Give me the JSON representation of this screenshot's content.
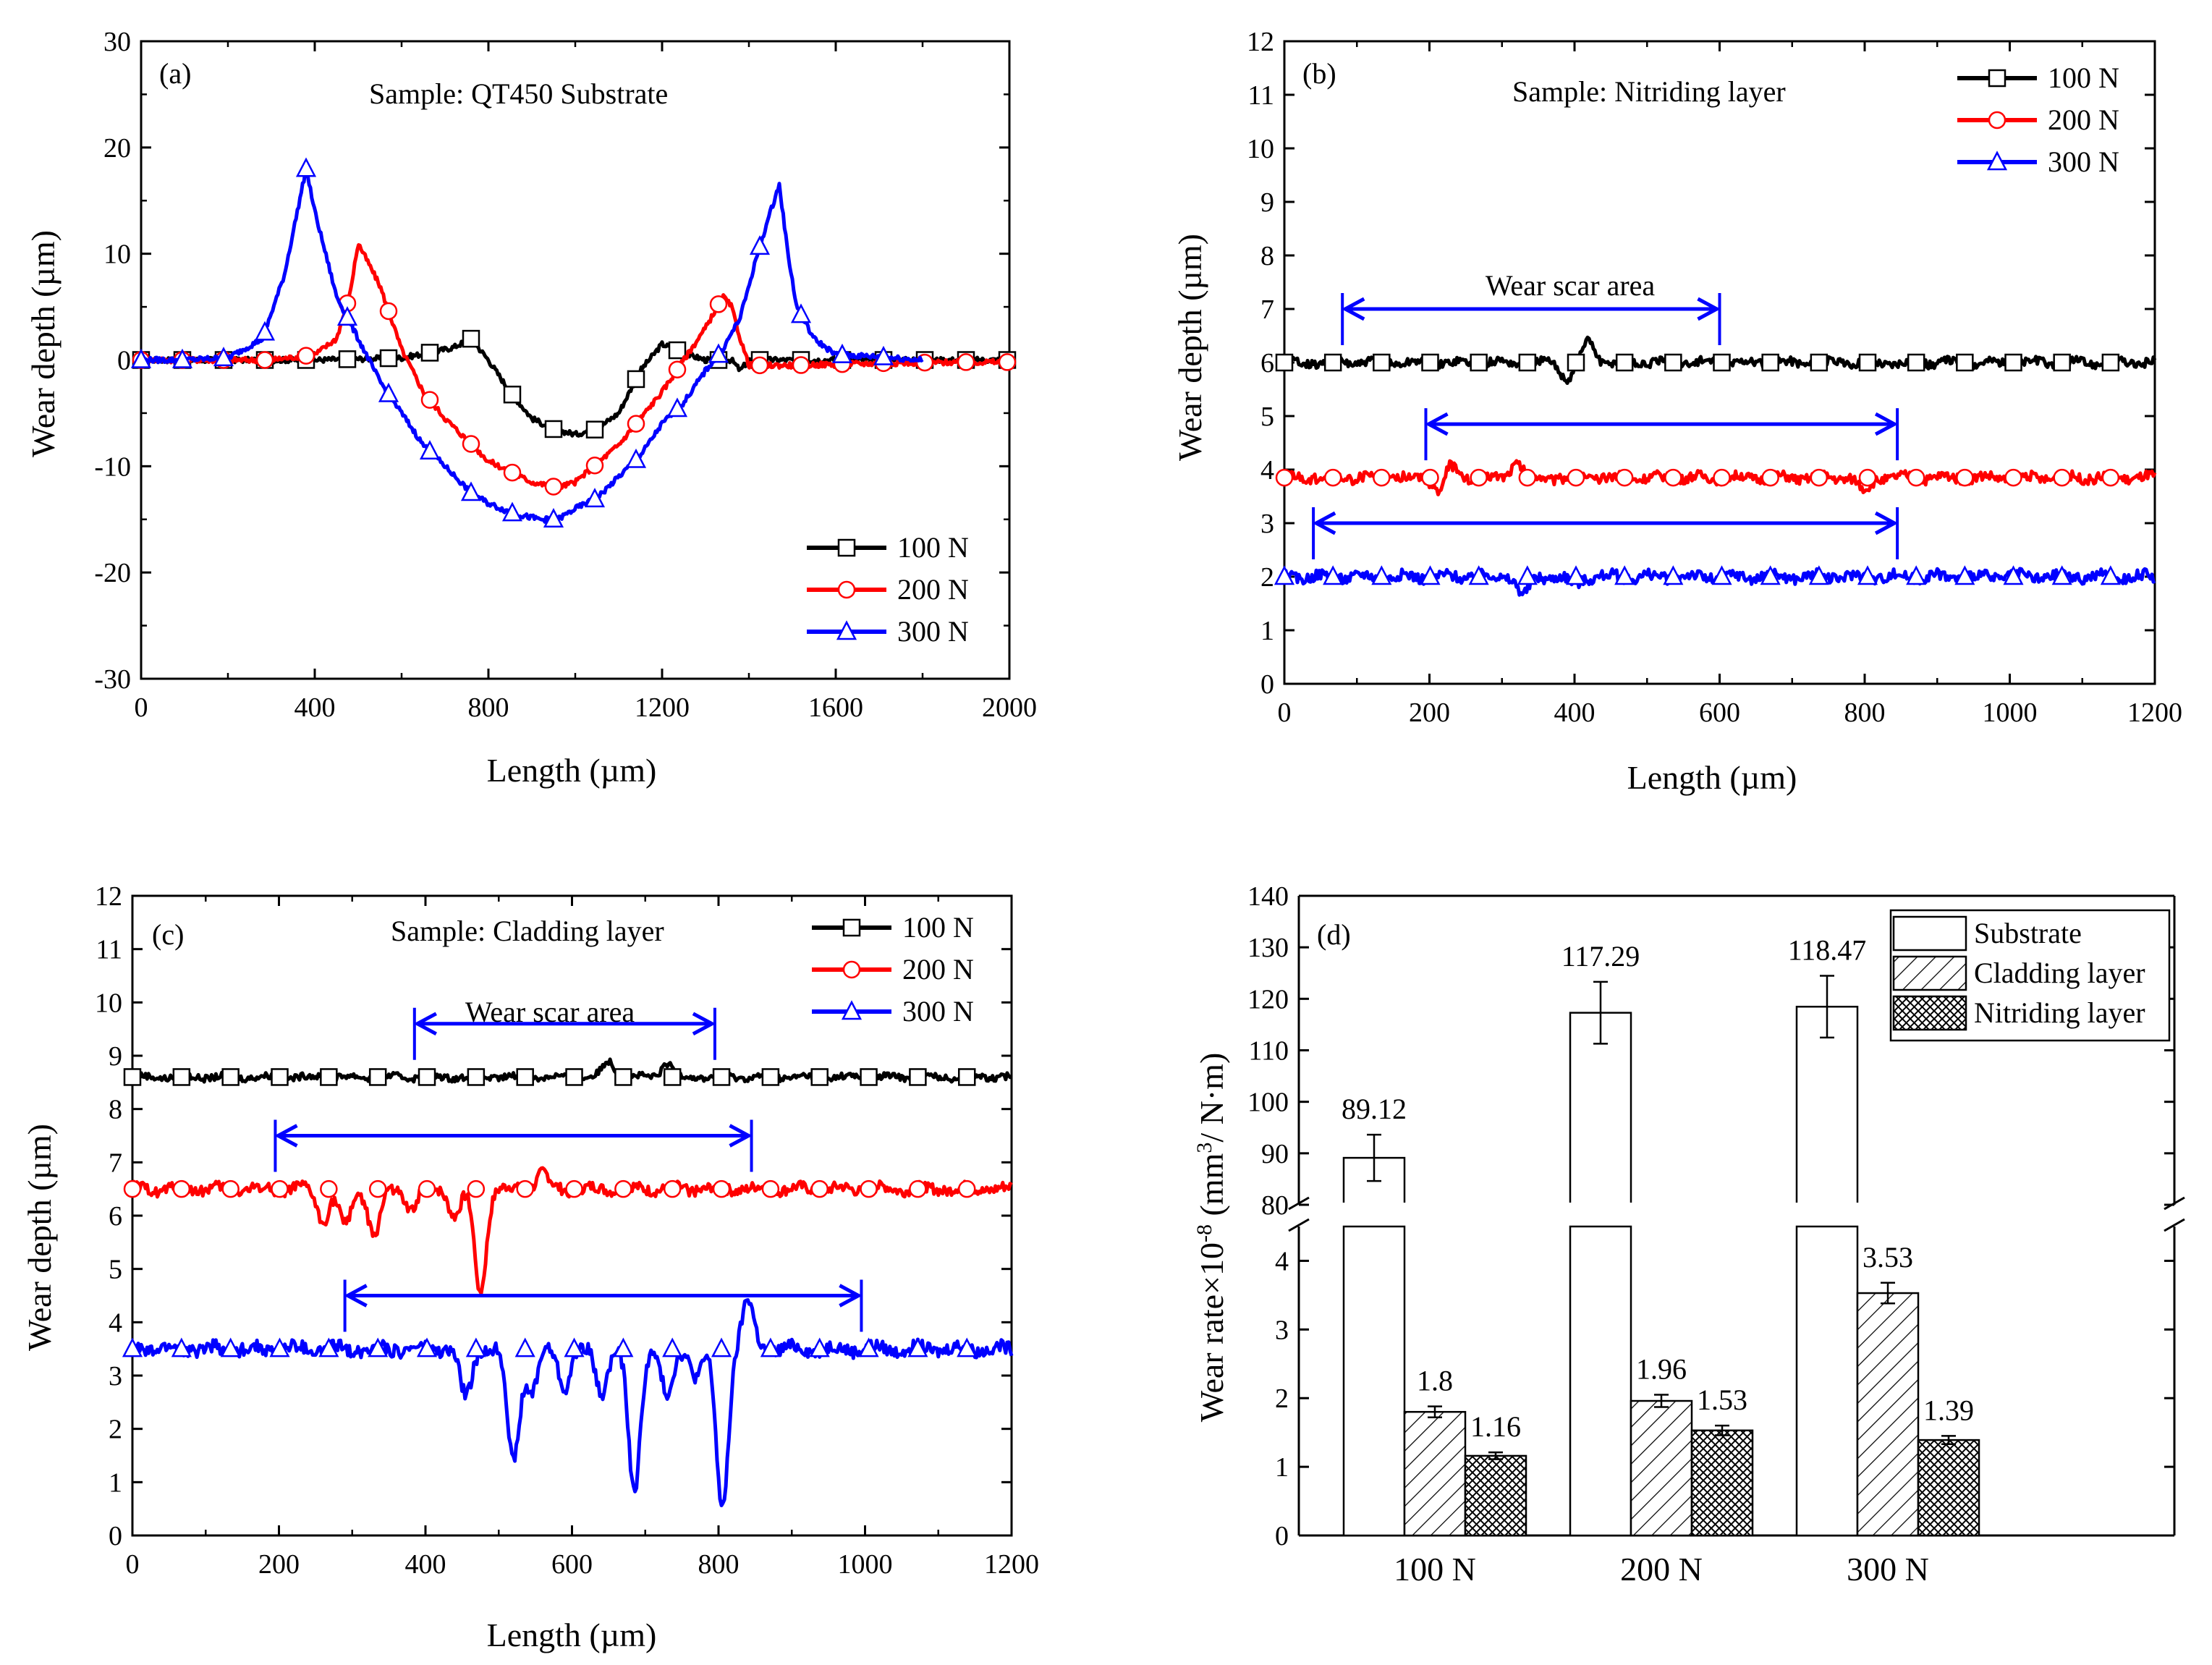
{
  "chart_data": [
    {
      "panel": "(a)",
      "type": "line",
      "title": "Sample: QT450  Substrate",
      "xlabel": "Length (µm)",
      "ylabel": "Wear depth (µm)",
      "xlim": [
        0,
        2000
      ],
      "ylim": [
        -30,
        30
      ],
      "xticks": [
        0,
        400,
        800,
        1200,
        1600,
        2000
      ],
      "yticks": [
        -30,
        -20,
        -10,
        0,
        10,
        20,
        30
      ],
      "series": [
        {
          "name": "100 N",
          "color": "#000000",
          "marker": "square",
          "x": [
            0,
            200,
            400,
            600,
            680,
            720,
            760,
            800,
            850,
            900,
            950,
            1000,
            1050,
            1100,
            1150,
            1200,
            1260,
            1300,
            1360,
            1380,
            1400,
            1600,
            1800,
            2000
          ],
          "y": [
            0,
            0,
            0,
            0.2,
            0.8,
            1.2,
            2,
            0,
            -3,
            -5.5,
            -6.5,
            -7,
            -6.5,
            -5,
            -1,
            1.5,
            0.5,
            0,
            0,
            -1,
            0,
            0,
            0,
            0
          ]
        },
        {
          "name": "200 N",
          "color": "#ff0000",
          "marker": "circle",
          "x": [
            0,
            100,
            200,
            300,
            400,
            450,
            480,
            500,
            550,
            600,
            650,
            700,
            800,
            900,
            960,
            1000,
            1100,
            1200,
            1250,
            1300,
            1340,
            1360,
            1380,
            1400,
            1500,
            1700,
            1900,
            2000
          ],
          "y": [
            0,
            0,
            0,
            0,
            0.5,
            2,
            6,
            11,
            7,
            1,
            -3,
            -5.5,
            -9.5,
            -11.5,
            -12,
            -11.5,
            -8,
            -3,
            0,
            3,
            6,
            5,
            2,
            -0.5,
            -0.5,
            -0.3,
            -0.2,
            -0.2
          ]
        },
        {
          "name": "300 N",
          "color": "#0000ff",
          "marker": "triangle",
          "x": [
            0,
            100,
            200,
            280,
            330,
            360,
            380,
            400,
            450,
            500,
            550,
            600,
            650,
            700,
            760,
            800,
            860,
            920,
            960,
            1000,
            1050,
            1100,
            1150,
            1200,
            1250,
            1300,
            1340,
            1380,
            1420,
            1450,
            1470,
            1490,
            1510,
            1550,
            1600,
            1700,
            1800
          ],
          "y": [
            0,
            0,
            0.2,
            2,
            8,
            14,
            18,
            14,
            6,
            2,
            -2,
            -5,
            -8,
            -10,
            -12.5,
            -13.5,
            -14.5,
            -15,
            -15,
            -14,
            -13,
            -11,
            -9,
            -6,
            -4,
            -1,
            1,
            4,
            10,
            14,
            16.5,
            10,
            5,
            2,
            0.5,
            0.3,
            0
          ]
        }
      ]
    },
    {
      "panel": "(b)",
      "type": "line",
      "title": "Sample: Nitriding layer",
      "annotation": "Wear scar area",
      "xlabel": "Length (µm)",
      "ylabel": "Wear depth (µm)",
      "xlim": [
        0,
        1200
      ],
      "ylim": [
        0,
        12
      ],
      "xticks": [
        0,
        200,
        400,
        600,
        800,
        1000,
        1200
      ],
      "yticks": [
        0,
        1,
        2,
        3,
        4,
        5,
        6,
        7,
        8,
        9,
        10,
        11,
        12
      ],
      "scar_ranges": [
        [
          80,
          600
        ],
        [
          195,
          845
        ],
        [
          40,
          845
        ]
      ],
      "series": [
        {
          "name": "100 N",
          "color": "#000000",
          "marker": "square",
          "baseline": 6.0,
          "noise": 0.08,
          "features": [
            [
              390,
              -0.3
            ],
            [
              420,
              0.4
            ]
          ]
        },
        {
          "name": "200 N",
          "color": "#ff0000",
          "marker": "circle",
          "baseline": 3.85,
          "noise": 0.09,
          "features": [
            [
              215,
              -0.35
            ],
            [
              225,
              0.3
            ],
            [
              320,
              0.3
            ],
            [
              800,
              -0.25
            ]
          ]
        },
        {
          "name": "300 N",
          "color": "#0000ff",
          "marker": "triangle",
          "baseline": 2.0,
          "noise": 0.1,
          "features": [
            [
              330,
              -0.35
            ],
            [
              400,
              -0.15
            ]
          ]
        }
      ]
    },
    {
      "panel": "(c)",
      "type": "line",
      "title": "Sample: Cladding layer",
      "annotation": "Wear scar area",
      "xlabel": "Length (µm)",
      "ylabel": "Wear depth (µm)",
      "xlim": [
        0,
        1200
      ],
      "ylim": [
        0,
        12
      ],
      "xticks": [
        0,
        200,
        400,
        600,
        800,
        1000,
        1200
      ],
      "yticks": [
        0,
        1,
        2,
        3,
        4,
        5,
        6,
        7,
        8,
        9,
        10,
        11,
        12
      ],
      "scar_ranges": [
        [
          385,
          795
        ],
        [
          195,
          845
        ],
        [
          290,
          995
        ]
      ],
      "series": [
        {
          "name": "100 N",
          "color": "#000000",
          "marker": "square",
          "baseline": 8.6,
          "noise": 0.06,
          "features": [
            [
              650,
              0.3
            ],
            [
              730,
              0.25
            ]
          ]
        },
        {
          "name": "200 N",
          "color": "#ff0000",
          "marker": "circle",
          "baseline": 6.5,
          "noise": 0.1,
          "features": [
            [
              260,
              -0.6
            ],
            [
              290,
              -0.7
            ],
            [
              330,
              -0.9
            ],
            [
              380,
              -0.4
            ],
            [
              440,
              -0.5
            ],
            [
              475,
              -1.9
            ],
            [
              560,
              0.3
            ]
          ]
        },
        {
          "name": "300 N",
          "color": "#0000ff",
          "marker": "triangle",
          "baseline": 3.5,
          "noise": 0.12,
          "features": [
            [
              455,
              -0.9
            ],
            [
              520,
              -2.1
            ],
            [
              545,
              -0.8
            ],
            [
              590,
              -0.7
            ],
            [
              640,
              -0.8
            ],
            [
              685,
              -2.7
            ],
            [
              730,
              -0.9
            ],
            [
              770,
              -0.5
            ],
            [
              805,
              -3.0
            ],
            [
              840,
              0.9
            ]
          ]
        }
      ]
    },
    {
      "panel": "(d)",
      "type": "bar",
      "xlabel": "",
      "ylabel_prefix": "Wear rate×10",
      "ylabel_exp": "-8",
      "ylabel_open": " (mm",
      "ylabel_exp2": "3",
      "ylabel_close": "/ N·m)",
      "categories": [
        "100 N",
        "200 N",
        "300 N"
      ],
      "axis_break": [
        4.5,
        80
      ],
      "ylim_lower": [
        0,
        4.5
      ],
      "ylim_upper": [
        80,
        140
      ],
      "yticks_lower": [
        0,
        1,
        2,
        3,
        4
      ],
      "yticks_upper": [
        80,
        90,
        100,
        110,
        120,
        130,
        140
      ],
      "series": [
        {
          "name": "Substrate",
          "pattern": "none",
          "values": [
            89.12,
            117.29,
            118.47
          ],
          "errors": [
            4.5,
            6.0,
            6.0
          ],
          "labels": [
            "89.12",
            "117.29",
            "118.47"
          ]
        },
        {
          "name": "Cladding layer",
          "pattern": "diagonal",
          "values": [
            1.8,
            1.96,
            3.53
          ],
          "errors": [
            0.08,
            0.09,
            0.15
          ],
          "labels": [
            "1.8",
            "1.96",
            "3.53"
          ]
        },
        {
          "name": "Nitriding layer",
          "pattern": "crosshatch",
          "values": [
            1.16,
            1.53,
            1.39
          ],
          "errors": [
            0.05,
            0.07,
            0.06
          ],
          "labels": [
            "1.16",
            "1.53",
            "1.39"
          ]
        }
      ]
    }
  ]
}
